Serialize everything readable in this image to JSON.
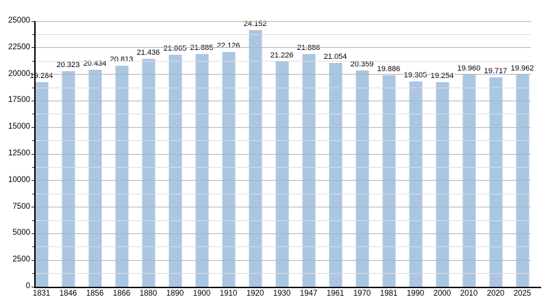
{
  "chart_data": {
    "type": "bar",
    "title": "",
    "xlabel": "",
    "ylabel": "",
    "categories": [
      "1831",
      "1846",
      "1856",
      "1866",
      "1880",
      "1890",
      "1900",
      "1910",
      "1920",
      "1930",
      "1947",
      "1961",
      "1970",
      "1981",
      "1990",
      "2000",
      "2010",
      "2020",
      "2025"
    ],
    "values": [
      19284,
      20323,
      20434,
      20813,
      21436,
      21865,
      21885,
      22126,
      24152,
      21226,
      21886,
      21054,
      20359,
      19886,
      19305,
      19254,
      19960,
      19717,
      19962
    ],
    "value_labels": [
      "19.284",
      "20.323",
      "20.434",
      "20.813",
      "21.436",
      "21.865",
      "21.885",
      "22.126",
      "24.152",
      "21.226",
      "21.886",
      "21.054",
      "20.359",
      "19.886",
      "19.305",
      "19.254",
      "19.960",
      "19.717",
      "19.962"
    ],
    "ylim": [
      0,
      25000
    ],
    "y_major_ticks": [
      0,
      2500,
      5000,
      7500,
      10000,
      12500,
      15000,
      17500,
      20000,
      22500,
      25000
    ],
    "y_major_tick_labels": [
      "0",
      "2500",
      "5000",
      "7500",
      "10000",
      "12500",
      "15000",
      "17500",
      "20000",
      "22500",
      "25000"
    ],
    "y_minor_tick_interval": 1250,
    "grid": "horizontal, major and minor lines drawn over bars",
    "legend": "none",
    "colors": {
      "bar_fill": "#aac6e2",
      "grid_major": "#b3b3b3",
      "grid_minor": "#dddddd",
      "axis": "#000000",
      "text": "#000000",
      "background": "#ffffff"
    }
  }
}
